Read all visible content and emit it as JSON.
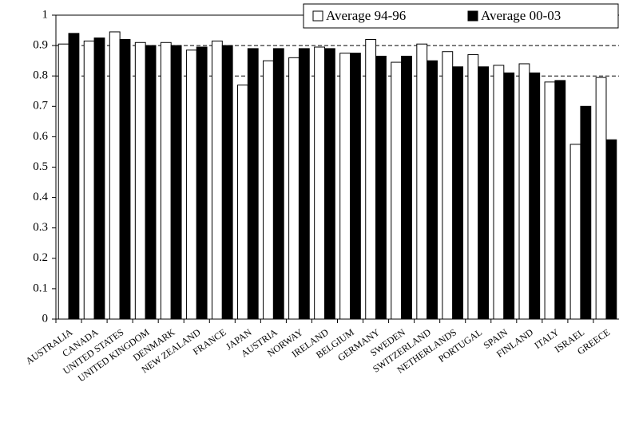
{
  "chart_data": {
    "type": "bar",
    "categories": [
      "AUSTRALIA",
      "CANADA",
      "UNITED STATES",
      "UNITED KINGDOM",
      "DENMARK",
      "NEW ZEALAND",
      "FRANCE",
      "JAPAN",
      "AUSTRIA",
      "NORWAY",
      "IRELAND",
      "BELGIUM",
      "GERMANY",
      "SWEDEN",
      "SWITZERLAND",
      "NETHERLANDS",
      "PORTUGAL",
      "SPAIN",
      "FINLAND",
      "ITALY",
      "ISRAEL",
      "GREECE"
    ],
    "series": [
      {
        "name": "Average 94-96",
        "color": "#ffffff",
        "values": [
          0.905,
          0.915,
          0.945,
          0.91,
          0.91,
          0.885,
          0.915,
          0.77,
          0.85,
          0.86,
          0.895,
          0.875,
          0.92,
          0.845,
          0.905,
          0.88,
          0.87,
          0.835,
          0.84,
          0.78,
          0.575,
          0.795
        ]
      },
      {
        "name": "Average 00-03",
        "color": "#000000",
        "values": [
          0.94,
          0.925,
          0.92,
          0.9,
          0.9,
          0.895,
          0.9,
          0.89,
          0.89,
          0.89,
          0.89,
          0.875,
          0.865,
          0.865,
          0.85,
          0.83,
          0.83,
          0.81,
          0.81,
          0.785,
          0.7,
          0.59
        ]
      }
    ],
    "ylim": [
      0,
      1
    ],
    "yticks": [
      0,
      0.1,
      0.2,
      0.3,
      0.4,
      0.5,
      0.6,
      0.7,
      0.8,
      0.9,
      1
    ],
    "grid_lines": [
      0.8,
      0.9
    ],
    "legend": "top-right"
  }
}
